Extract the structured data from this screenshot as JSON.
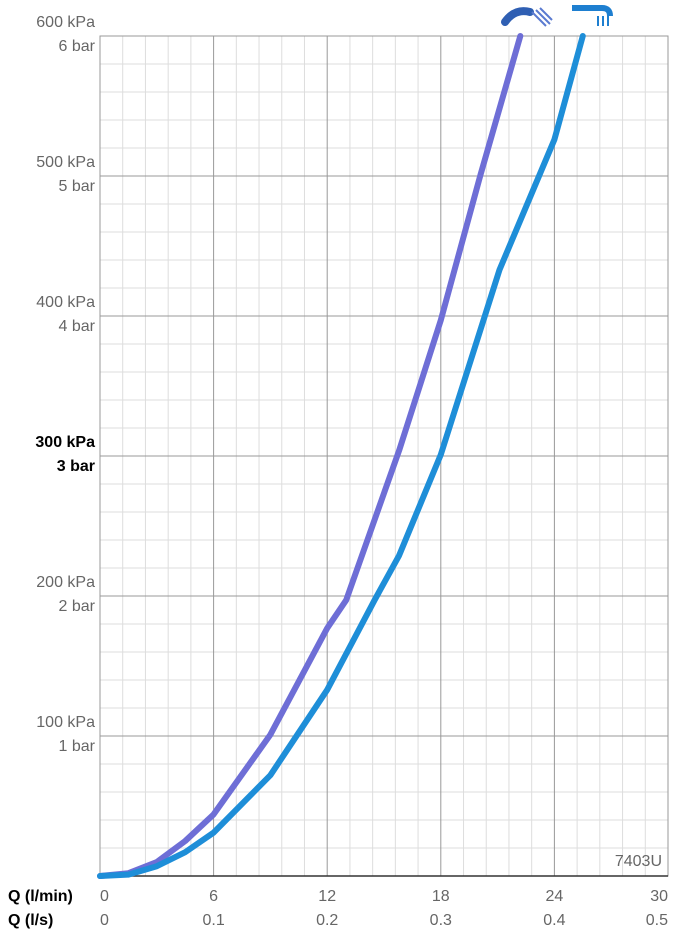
{
  "chart_data": {
    "type": "line",
    "xlabel": "Q (l/min)",
    "x2label": "Q (l/s)",
    "xlim": [
      0,
      30
    ],
    "xticks": [
      0,
      6,
      12,
      18,
      24,
      30
    ],
    "x2lim": [
      0,
      0.5
    ],
    "x2ticks": [
      0,
      0.1,
      0.2,
      0.3,
      0.4,
      0.5
    ],
    "ylim": [
      0,
      600
    ],
    "yticks": [
      {
        "value": 100,
        "label": "100 kPa"
      },
      {
        "value": 200,
        "label": "200 kPa"
      },
      {
        "value": 300,
        "label": "300 kPa"
      },
      {
        "value": 400,
        "label": "400 kPa"
      },
      {
        "value": 500,
        "label": "500 kPa"
      },
      {
        "value": 600,
        "label": "600 kPa"
      }
    ],
    "yticks_bar": [
      {
        "value": 100,
        "label": "1 bar"
      },
      {
        "value": 200,
        "label": "2 bar"
      },
      {
        "value": 300,
        "label": "3 bar"
      },
      {
        "value": 400,
        "label": "4 bar"
      },
      {
        "value": 500,
        "label": "5 bar"
      },
      {
        "value": 600,
        "label": "6 bar"
      }
    ],
    "highlight_ytick": 300,
    "grid": true,
    "annotation": "7403U",
    "series": [
      {
        "color": "#6e6ed6",
        "x": [
          0,
          1.5,
          3,
          4.5,
          6,
          9,
          12,
          13,
          15.8,
          18,
          20.1,
          22.2
        ],
        "values": [
          0,
          2,
          10,
          25,
          44,
          101,
          177,
          197,
          304,
          397,
          501,
          600
        ]
      },
      {
        "color": "#1e8ed8",
        "x": [
          0,
          1.5,
          3,
          4.5,
          6,
          9,
          12,
          14.5,
          15.8,
          18,
          21.1,
          24,
          25.5
        ],
        "values": [
          0,
          1,
          7,
          17,
          31,
          72,
          133,
          197,
          229,
          301,
          433,
          526,
          600
        ]
      }
    ]
  }
}
